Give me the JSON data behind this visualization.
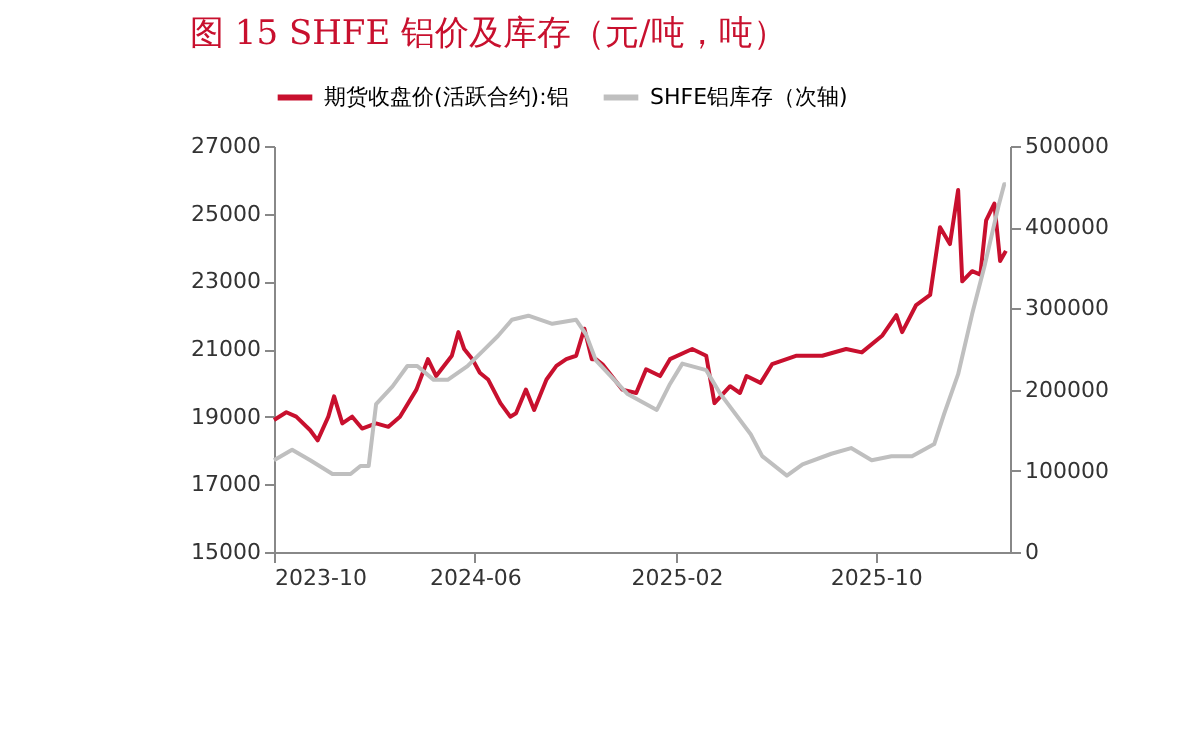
{
  "chart_data": {
    "type": "line",
    "title": "图 15  SHFE 铝价及库存（元/吨，吨）",
    "legend": "top",
    "grid": false,
    "xlim": [
      "2023-10-01",
      "2026-03-13"
    ],
    "xticks": [
      "2023-10",
      "2024-06",
      "2025-02",
      "2025-10"
    ],
    "ylim": [
      15000,
      27000
    ],
    "yticks": [
      15000,
      17000,
      19000,
      21000,
      23000,
      25000,
      27000
    ],
    "y2lim": [
      0,
      500000
    ],
    "y2ticks": [
      0,
      100000,
      200000,
      300000,
      400000,
      500000
    ],
    "series": [
      {
        "name": "期货收盘价(活跃合约):铝",
        "color": "#c8102e",
        "x": [
          "2023-10-01",
          "2023-10-16",
          "2023-10-28",
          "2023-11-14",
          "2023-11-23",
          "2023-12-06",
          "2023-12-13",
          "2023-12-23",
          "2024-01-04",
          "2024-01-16",
          "2024-02-02",
          "2024-02-17",
          "2024-03-02",
          "2024-03-22",
          "2024-04-05",
          "2024-04-15",
          "2024-05-04",
          "2024-05-12",
          "2024-05-19",
          "2024-05-29",
          "2024-06-07",
          "2024-06-17",
          "2024-07-02",
          "2024-07-14",
          "2024-07-21",
          "2024-08-02",
          "2024-08-12",
          "2024-08-27",
          "2024-09-08",
          "2024-09-20",
          "2024-10-02",
          "2024-10-12",
          "2024-10-21",
          "2024-10-26",
          "2024-11-03",
          "2024-11-27",
          "2024-12-14",
          "2024-12-26",
          "2025-01-12",
          "2025-01-24",
          "2025-02-20",
          "2025-03-09",
          "2025-03-19",
          "2025-04-07",
          "2025-04-19",
          "2025-04-27",
          "2025-05-14",
          "2025-05-28",
          "2025-06-26",
          "2025-07-28",
          "2025-08-26",
          "2025-09-14",
          "2025-10-09",
          "2025-10-26",
          "2025-11-02",
          "2025-11-19",
          "2025-12-06",
          "2025-12-18",
          "2025-12-30",
          "2026-01-09",
          "2026-01-14",
          "2026-01-26",
          "2026-02-05",
          "2026-02-12",
          "2026-02-22",
          "2026-03-01",
          "2026-03-08"
        ],
        "values": [
          18900,
          19130,
          19000,
          18600,
          18300,
          19000,
          19600,
          18800,
          19000,
          18650,
          18800,
          18700,
          19000,
          19800,
          20700,
          20200,
          20800,
          21500,
          21000,
          20700,
          20300,
          20100,
          19400,
          19000,
          19100,
          19800,
          19200,
          20100,
          20500,
          20700,
          20800,
          21600,
          20700,
          20700,
          20550,
          19800,
          19700,
          20400,
          20200,
          20700,
          21000,
          20800,
          19400,
          19900,
          19700,
          20200,
          20000,
          20550,
          20800,
          20800,
          21000,
          20900,
          21400,
          22000,
          21500,
          22300,
          22600,
          24600,
          24100,
          25700,
          23000,
          23300,
          23200,
          24800,
          25300,
          23600,
          23900
        ]
      },
      {
        "name": "SHFE铝库存（次轴)",
        "color": "#bfbfbf",
        "axis": "y2",
        "x": [
          "2023-10-01",
          "2023-10-23",
          "2023-11-14",
          "2023-12-11",
          "2024-01-02",
          "2024-01-14",
          "2024-01-24",
          "2024-02-02",
          "2024-02-22",
          "2024-03-11",
          "2024-03-23",
          "2024-04-12",
          "2024-04-29",
          "2024-05-23",
          "2024-06-12",
          "2024-06-29",
          "2024-07-16",
          "2024-08-05",
          "2024-09-03",
          "2024-10-02",
          "2024-10-14",
          "2024-10-26",
          "2024-12-03",
          "2025-01-08",
          "2025-01-24",
          "2025-02-08",
          "2025-03-09",
          "2025-03-26",
          "2025-05-02",
          "2025-05-16",
          "2025-06-15",
          "2025-07-04",
          "2025-08-08",
          "2025-09-01",
          "2025-09-26",
          "2025-10-20",
          "2025-11-14",
          "2025-12-11",
          "2025-12-23",
          "2026-01-09",
          "2026-01-26",
          "2026-02-10",
          "2026-02-27",
          "2026-03-06",
          "2026-03-08"
        ],
        "values": [
          113000,
          126000,
          113000,
          96000,
          96000,
          106000,
          106000,
          182000,
          204000,
          229000,
          229000,
          212000,
          212000,
          229000,
          249000,
          266000,
          286000,
          291000,
          281000,
          286000,
          268000,
          236000,
          195000,
          175000,
          207000,
          232000,
          224000,
          195000,
          145000,
          118000,
          94000,
          108000,
          121000,
          128000,
          113000,
          118000,
          118000,
          133000,
          170000,
          219000,
          293000,
          352000,
          426000,
          453000,
          453000
        ]
      }
    ]
  }
}
